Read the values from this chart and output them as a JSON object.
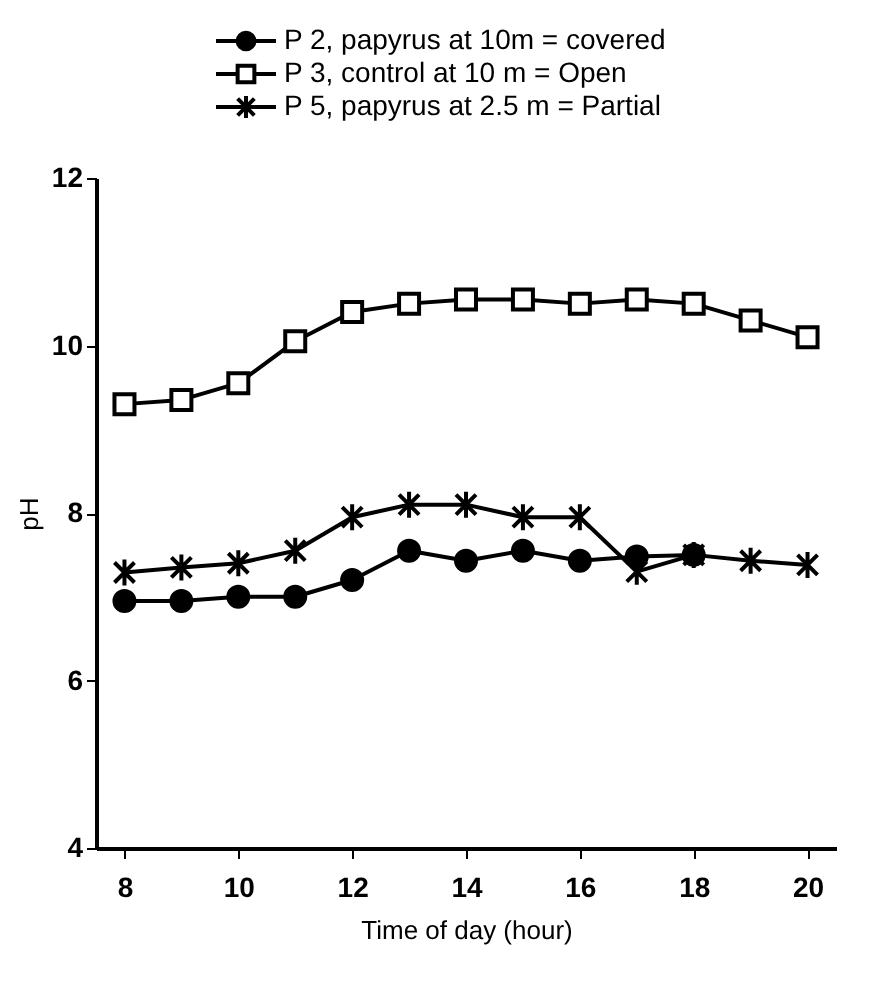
{
  "chart_data": {
    "type": "line",
    "xlabel": "Time of day (hour)",
    "ylabel": "pH",
    "x": [
      8,
      9,
      10,
      11,
      12,
      13,
      14,
      15,
      16,
      17,
      18,
      19,
      20
    ],
    "xlim": [
      7.5,
      20.5
    ],
    "xticks": [
      8,
      10,
      12,
      14,
      16,
      18,
      20
    ],
    "ylim": [
      4,
      12
    ],
    "yticks": [
      4,
      6,
      8,
      10,
      12
    ],
    "grid": false,
    "legend": "top",
    "series": [
      {
        "name": "P 2, papyrus at  10m = covered",
        "color": "#000000",
        "marker": "circle",
        "values": [
          6.95,
          6.95,
          7.0,
          7.0,
          7.2,
          7.55,
          7.43,
          7.55,
          7.43,
          7.48,
          7.5,
          null,
          null
        ]
      },
      {
        "name": "P 3, control at   10 m = Open",
        "color": "#000000",
        "marker": "square",
        "values": [
          9.3,
          9.35,
          9.55,
          10.05,
          10.4,
          10.5,
          10.55,
          10.55,
          10.5,
          10.55,
          10.5,
          10.3,
          10.1
        ]
      },
      {
        "name": "P 5, papyrus at 2.5 m = Partial",
        "color": "#000000",
        "marker": "cross",
        "values": [
          7.29,
          7.35,
          7.4,
          7.55,
          7.95,
          8.1,
          8.1,
          7.95,
          7.95,
          7.3,
          7.5,
          7.43,
          7.38
        ]
      }
    ]
  }
}
